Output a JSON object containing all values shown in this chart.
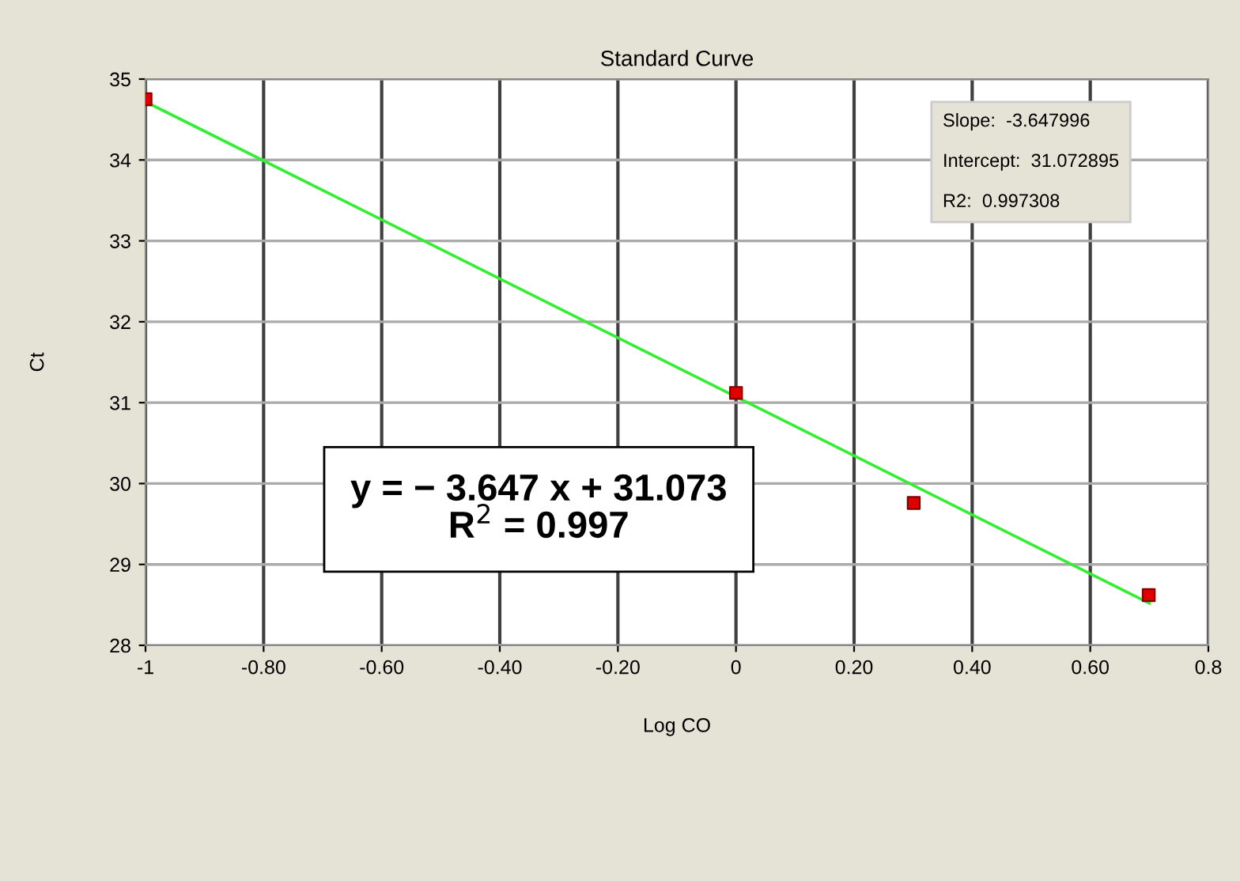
{
  "chart_data": {
    "type": "scatter",
    "title": "Standard Curve",
    "xlabel": "Log CO",
    "ylabel": "Ct",
    "x": [
      -1,
      0,
      0.301,
      0.699
    ],
    "series": [
      {
        "color": "#e00000",
        "values": [
          34.75,
          31.12,
          29.76,
          28.62
        ],
        "marker": "square"
      },
      {
        "type": "line",
        "color": "#33ee33",
        "x": [
          -1,
          0.7
        ],
        "values": [
          34.72,
          28.52
        ],
        "marker": "none"
      }
    ],
    "xlim": [
      -1,
      0.8
    ],
    "xticks": [
      {
        "value": -1,
        "label": "-1"
      },
      {
        "value": -0.8,
        "label": "-0.80"
      },
      {
        "value": -0.6,
        "label": "-0.60"
      },
      {
        "value": -0.4,
        "label": "-0.40"
      },
      {
        "value": -0.2,
        "label": "-0.20"
      },
      0,
      {
        "value": 0.2,
        "label": "0.20"
      },
      {
        "value": 0.4,
        "label": "0.40"
      },
      {
        "value": 0.6,
        "label": "0.60"
      },
      0.8
    ],
    "ylim": [
      28,
      35
    ],
    "yticks": [
      28,
      29,
      30,
      31,
      32,
      33,
      34,
      35
    ],
    "grid": true,
    "annotations": [
      "Slope:  -3.647996\n\nIntercept:  31.072895\n\nR2:  0.997308",
      "y = − 3.647 x + 31.073\nR$^{2}$ = 0.997"
    ]
  }
}
